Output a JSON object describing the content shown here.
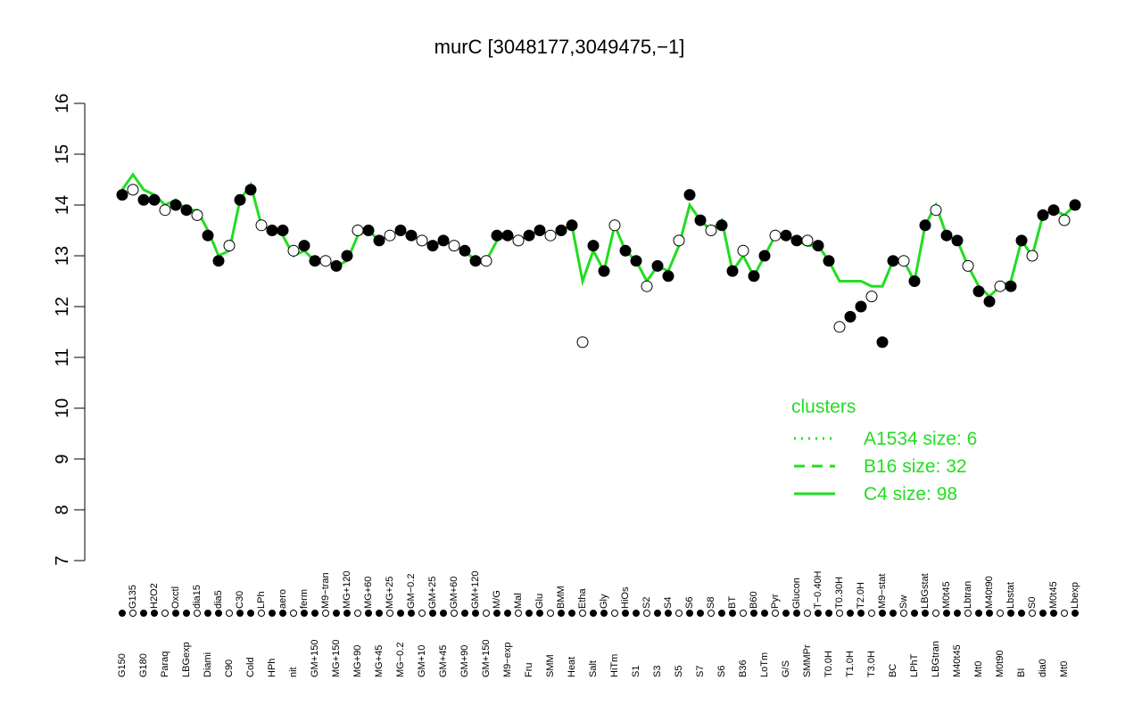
{
  "chart_data": {
    "type": "line",
    "title": "murC [3048177,3049475,−1]",
    "categories": [
      "G150",
      "G135",
      "G180",
      "H2O2",
      "Paraq",
      "Oxctl",
      "LBGexp",
      "dia15",
      "Diami",
      "dia5",
      "C90",
      "C30",
      "Cold",
      "LPh",
      "HPh",
      "aero",
      "nit",
      "ferm",
      "GM+150",
      "M9−tran",
      "MG+150",
      "MG+120",
      "MG+90",
      "MG+60",
      "MG+45",
      "MG+25",
      "MG−0.2",
      "GM−0.2",
      "GM+10",
      "GM+25",
      "GM+45",
      "GM+60",
      "GM+90",
      "GM+120",
      "GM+150",
      "M/G",
      "M9−exp",
      "Mal",
      "Fru",
      "Glu",
      "SMM",
      "BMM",
      "Heat",
      "Etha",
      "Salt",
      "Gly",
      "HiTm",
      "HiOs",
      "S1",
      "S2",
      "S3",
      "S4",
      "S5",
      "S6",
      "S7",
      "S8",
      "S6",
      "BT",
      "B36",
      "B60",
      "LoTm",
      "Pyr",
      "G/S",
      "Glucon",
      "SMMPr",
      "T−0.40H",
      "T0.0H",
      "T0.30H",
      "T1.0H",
      "T2.0H",
      "T3.0H",
      "M9−stat",
      "BC",
      "Sw",
      "LPhT",
      "LBGstat",
      "LBGtran",
      "M0t45",
      "M40t45",
      "Lbtran",
      "Mt0",
      "M40t90",
      "M0t90",
      "Lbstat",
      "BI",
      "S0",
      "dia0",
      "M0t45",
      "Mt0",
      "Lbexp"
    ],
    "values": [
      14.2,
      14.3,
      14.1,
      14.1,
      13.9,
      14.0,
      13.9,
      13.8,
      13.4,
      12.9,
      13.2,
      14.1,
      14.3,
      13.6,
      13.5,
      13.5,
      13.1,
      13.2,
      12.9,
      12.9,
      12.8,
      13.0,
      13.5,
      13.5,
      13.3,
      13.4,
      13.5,
      13.4,
      13.3,
      13.2,
      13.3,
      13.2,
      13.1,
      12.9,
      12.9,
      13.4,
      13.4,
      13.3,
      13.4,
      13.5,
      13.4,
      13.5,
      13.6,
      11.3,
      13.2,
      12.7,
      13.6,
      13.1,
      12.9,
      12.4,
      12.8,
      12.6,
      13.3,
      14.2,
      13.7,
      13.5,
      13.6,
      12.7,
      13.1,
      12.6,
      13.0,
      13.4,
      13.4,
      13.3,
      13.3,
      13.2,
      12.9,
      11.6,
      11.8,
      12.0,
      12.2,
      11.3,
      12.9,
      12.9,
      12.5,
      13.6,
      13.9,
      13.4,
      13.3,
      12.8,
      12.3,
      12.1,
      12.4,
      12.4,
      13.3,
      13.0,
      13.8,
      13.9,
      13.7,
      14.0
    ],
    "color": "#000000",
    "ylim": [
      7,
      16
    ],
    "yticks": [
      7,
      8,
      9,
      10,
      11,
      12,
      13,
      14,
      15,
      16
    ],
    "legend_title": "clusters",
    "series": [
      {
        "name": "A1534 size: 6",
        "style": "dotted",
        "color": "#22dd22"
      },
      {
        "name": "B16 size: 32",
        "style": "dashed",
        "color": "#22dd22"
      },
      {
        "name": "C4 size: 98",
        "style": "solid",
        "color": "#22dd22",
        "values": [
          14.3,
          14.6,
          14.3,
          14.2,
          14.0,
          14.1,
          13.9,
          13.9,
          13.5,
          13.0,
          13.1,
          14.1,
          14.4,
          13.6,
          13.5,
          13.4,
          13.0,
          13.1,
          12.9,
          12.9,
          12.8,
          12.9,
          13.4,
          13.5,
          13.3,
          13.4,
          13.5,
          13.4,
          13.3,
          13.2,
          13.3,
          13.2,
          13.1,
          12.9,
          12.9,
          13.3,
          13.4,
          13.3,
          13.4,
          13.5,
          13.4,
          13.5,
          13.6,
          12.5,
          13.1,
          12.7,
          13.6,
          13.1,
          12.9,
          12.5,
          12.8,
          12.7,
          13.2,
          14.0,
          13.7,
          13.5,
          13.7,
          12.7,
          13.0,
          12.6,
          13.0,
          13.4,
          13.4,
          13.3,
          13.2,
          13.2,
          12.9,
          12.5,
          12.5,
          12.5,
          12.4,
          12.4,
          12.9,
          12.9,
          12.5,
          13.6,
          14.0,
          13.4,
          13.3,
          12.8,
          12.4,
          12.2,
          12.4,
          12.5,
          13.3,
          13.0,
          13.8,
          13.9,
          13.8,
          14.0
        ]
      }
    ]
  }
}
